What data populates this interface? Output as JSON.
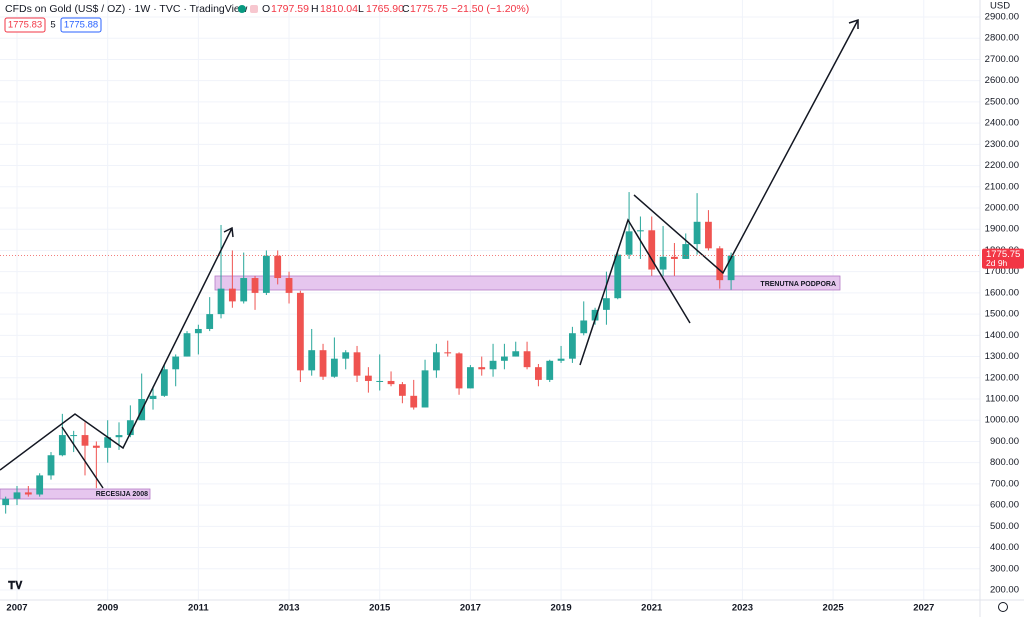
{
  "chart_data": {
    "type": "candlestick",
    "header": {
      "title": "CFDs on Gold (US$ / OZ) · 1W · TVC · TradingView",
      "open_label": "O",
      "open": "1797.59",
      "high_label": "H",
      "high": "1810.04",
      "low_label": "L",
      "low": "1765.90",
      "close_label": "C",
      "close": "1775.75",
      "change": "−21.50 (−1.20%)",
      "bid": "1775.83",
      "spread": "5",
      "ask": "1775.88"
    },
    "currency": "USD",
    "last_price": 1775.75,
    "countdown": "2d 9h",
    "annotations": [
      "RECESIJA 2008",
      "TRENUTNA PODPORA"
    ],
    "up_color": "#26a69a",
    "down_color": "#ef5350",
    "grid": true,
    "x": [
      2006.75,
      2007,
      2007.25,
      2007.5,
      2007.75,
      2008,
      2008.25,
      2008.5,
      2008.75,
      2009,
      2009.25,
      2009.5,
      2009.75,
      2010,
      2010.25,
      2010.5,
      2010.75,
      2011,
      2011.25,
      2011.5,
      2011.75,
      2012,
      2012.25,
      2012.5,
      2012.75,
      2013,
      2013.25,
      2013.5,
      2013.75,
      2014,
      2014.25,
      2014.5,
      2014.75,
      2015,
      2015.25,
      2015.5,
      2015.75,
      2016,
      2016.25,
      2016.5,
      2016.75,
      2017,
      2017.25,
      2017.5,
      2017.75,
      2018,
      2018.25,
      2018.5,
      2018.75,
      2019,
      2019.25,
      2019.5,
      2019.75,
      2020,
      2020.25,
      2020.5,
      2020.75,
      2021,
      2021.25,
      2021.5,
      2021.75,
      2022,
      2022.25,
      2022.5,
      2022.75
    ],
    "open": [
      600,
      630,
      660,
      650,
      740,
      835,
      930,
      930,
      880,
      870,
      920,
      930,
      1000,
      1100,
      1115,
      1240,
      1300,
      1410,
      1430,
      1500,
      1620,
      1560,
      1670,
      1600,
      1775,
      1670,
      1600,
      1235,
      1330,
      1205,
      1290,
      1320,
      1210,
      1185,
      1185,
      1170,
      1115,
      1060,
      1235,
      1320,
      1315,
      1150,
      1250,
      1240,
      1280,
      1300,
      1325,
      1250,
      1190,
      1280,
      1290,
      1410,
      1470,
      1520,
      1575,
      1780,
      1890,
      1895,
      1710,
      1770,
      1760,
      1830,
      1935,
      1810,
      1660
    ],
    "high": [
      640,
      690,
      690,
      750,
      850,
      1030,
      950,
      990,
      900,
      1000,
      990,
      1070,
      1220,
      1160,
      1260,
      1310,
      1420,
      1450,
      1580,
      1920,
      1800,
      1790,
      1680,
      1800,
      1800,
      1700,
      1610,
      1430,
      1360,
      1390,
      1330,
      1350,
      1250,
      1310,
      1230,
      1180,
      1190,
      1285,
      1360,
      1375,
      1320,
      1260,
      1300,
      1360,
      1360,
      1370,
      1370,
      1265,
      1285,
      1350,
      1440,
      1560,
      1530,
      1700,
      1790,
      2075,
      1960,
      1960,
      1915,
      1835,
      1880,
      2070,
      1990,
      1820,
      1790
    ],
    "low": [
      560,
      600,
      640,
      640,
      720,
      830,
      850,
      740,
      680,
      800,
      860,
      920,
      1000,
      1050,
      1110,
      1160,
      1300,
      1310,
      1420,
      1480,
      1530,
      1550,
      1520,
      1590,
      1640,
      1550,
      1180,
      1210,
      1190,
      1200,
      1240,
      1180,
      1130,
      1140,
      1160,
      1080,
      1050,
      1060,
      1200,
      1300,
      1120,
      1150,
      1210,
      1205,
      1240,
      1300,
      1240,
      1160,
      1180,
      1270,
      1270,
      1400,
      1450,
      1450,
      1570,
      1760,
      1760,
      1680,
      1680,
      1680,
      1760,
      1780,
      1800,
      1620,
      1615
    ],
    "close": [
      630,
      660,
      650,
      740,
      835,
      930,
      930,
      880,
      870,
      920,
      930,
      1000,
      1100,
      1115,
      1240,
      1300,
      1410,
      1430,
      1500,
      1620,
      1560,
      1670,
      1600,
      1775,
      1670,
      1600,
      1235,
      1330,
      1205,
      1290,
      1320,
      1210,
      1185,
      1185,
      1170,
      1115,
      1060,
      1235,
      1320,
      1315,
      1150,
      1250,
      1240,
      1280,
      1300,
      1325,
      1250,
      1190,
      1280,
      1290,
      1410,
      1470,
      1520,
      1575,
      1780,
      1890,
      1895,
      1710,
      1770,
      1760,
      1830,
      1935,
      1810,
      1660,
      1775.75
    ],
    "xlim": [
      2006.625,
      2028.24
    ],
    "xticks": [
      2007,
      2009,
      2011,
      2013,
      2015,
      2017,
      2019,
      2021,
      2023,
      2025,
      2027
    ],
    "ylim": [
      200,
      2900
    ],
    "yticks": [
      {
        "value": 200,
        "label": "200.00"
      },
      {
        "value": 300,
        "label": "300.00"
      },
      {
        "value": 400,
        "label": "400.00"
      },
      {
        "value": 500,
        "label": "500.00"
      },
      {
        "value": 600,
        "label": "600.00"
      },
      {
        "value": 700,
        "label": "700.00"
      },
      {
        "value": 800,
        "label": "800.00"
      },
      {
        "value": 900,
        "label": "900.00"
      },
      {
        "value": 1000,
        "label": "1000.00"
      },
      {
        "value": 1100,
        "label": "1100.00"
      },
      {
        "value": 1200,
        "label": "1200.00"
      },
      {
        "value": 1300,
        "label": "1300.00"
      },
      {
        "value": 1400,
        "label": "1400.00"
      },
      {
        "value": 1500,
        "label": "1500.00"
      },
      {
        "value": 1600,
        "label": "1600.00"
      },
      {
        "value": 1700,
        "label": "1700.00"
      },
      {
        "value": 1800,
        "label": "1800.00"
      },
      {
        "value": 1900,
        "label": "1900.00"
      },
      {
        "value": 2000,
        "label": "2000.00"
      },
      {
        "value": 2100,
        "label": "2100.00"
      },
      {
        "value": 2200,
        "label": "2200.00"
      },
      {
        "value": 2300,
        "label": "2300.00"
      },
      {
        "value": 2400,
        "label": "2400.00"
      },
      {
        "value": 2500,
        "label": "2500.00"
      },
      {
        "value": 2600,
        "label": "2600.00"
      },
      {
        "value": 2700,
        "label": "2700.00"
      },
      {
        "value": 2800,
        "label": "2800.00"
      },
      {
        "value": 2900,
        "label": "2900.00"
      }
    ]
  }
}
